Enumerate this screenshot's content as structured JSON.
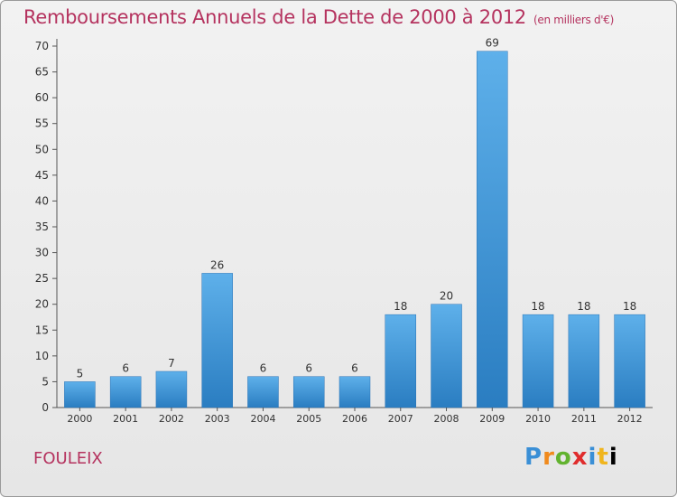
{
  "chart_data": {
    "type": "bar",
    "title": "Remboursements Annuels de la Dette de 2000 à 2012",
    "subtitle": "(en milliers d'€)",
    "categories": [
      "2000",
      "2001",
      "2002",
      "2003",
      "2004",
      "2005",
      "2006",
      "2007",
      "2008",
      "2009",
      "2010",
      "2011",
      "2012"
    ],
    "values": [
      5,
      6,
      7,
      26,
      6,
      6,
      6,
      18,
      20,
      69,
      18,
      18,
      18
    ],
    "ylim": [
      0,
      70
    ],
    "yticks": [
      0,
      5,
      10,
      15,
      20,
      25,
      30,
      35,
      40,
      45,
      50,
      55,
      60,
      65,
      70
    ],
    "grid": false,
    "bar_color": "#3b8fd6"
  },
  "commune": "FOULEIX",
  "logo": [
    "P",
    "r",
    "o",
    "x",
    "i",
    "t",
    "i"
  ]
}
